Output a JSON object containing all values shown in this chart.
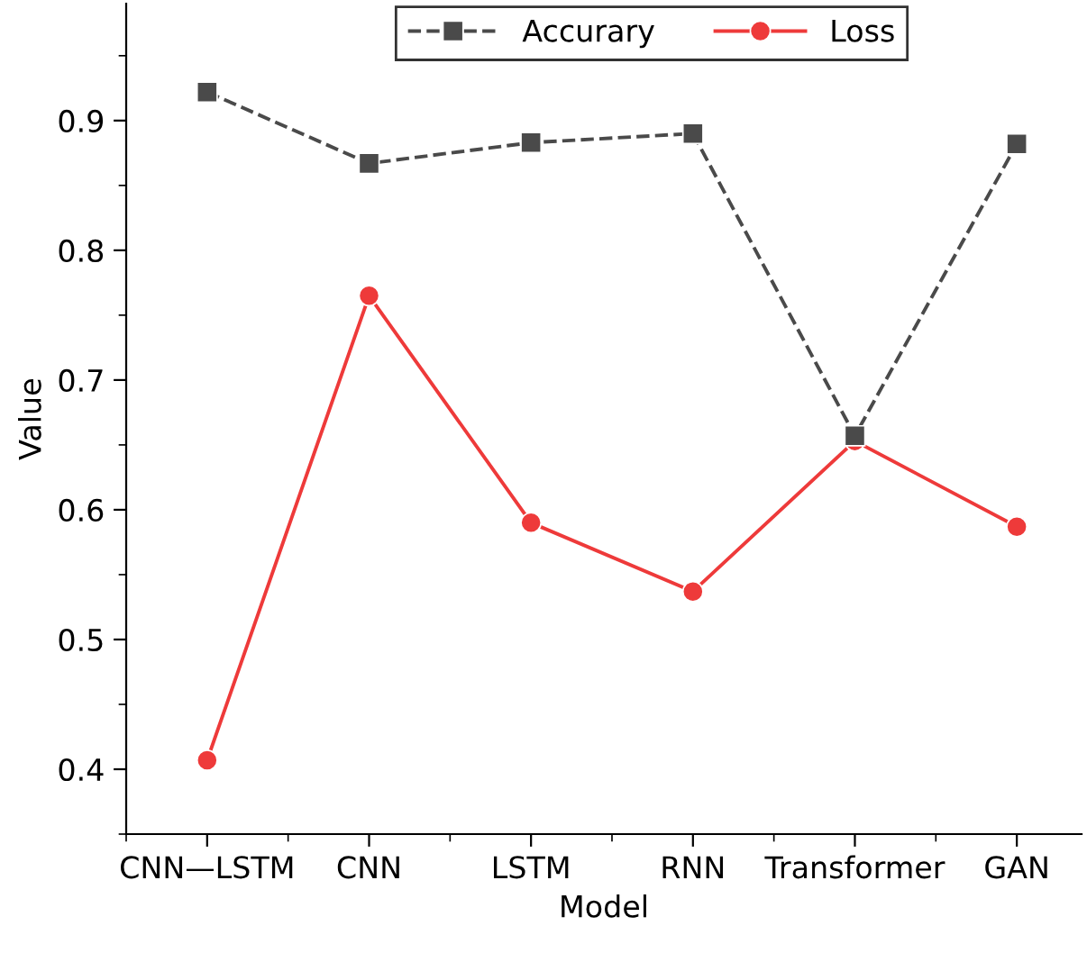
{
  "chart_data": {
    "type": "line",
    "xlabel": "Model",
    "ylabel": "Value",
    "categories": [
      "CNN—LSTM",
      "CNN",
      "LSTM",
      "RNN",
      "Transformer",
      "GAN"
    ],
    "series": [
      {
        "name": "Accurary",
        "color": "#4a4a4a",
        "marker": "square",
        "line_style": "dashed",
        "values": [
          0.922,
          0.867,
          0.883,
          0.89,
          0.657,
          0.882
        ]
      },
      {
        "name": "Loss",
        "color": "#ee3a3a",
        "marker": "circle",
        "line_style": "solid",
        "values": [
          0.407,
          0.765,
          0.59,
          0.537,
          0.653,
          0.587
        ]
      }
    ],
    "ylim": [
      0.35,
      0.99
    ],
    "yticks": [
      0.4,
      0.5,
      0.6,
      0.7,
      0.8,
      0.9
    ],
    "grid": false,
    "legend": "top"
  }
}
